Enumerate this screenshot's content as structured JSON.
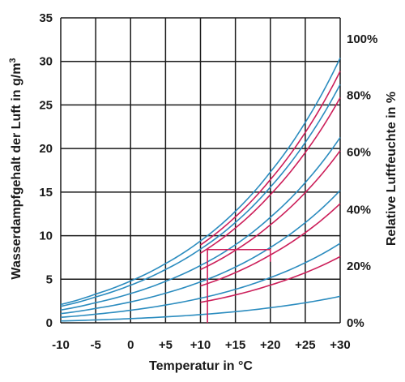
{
  "chart_data": {
    "type": "line",
    "xlabel": "Temperatur in °C",
    "ylabel": "Wasserdampfgehalt der Luft in g/m",
    "ylabel_sup": "3",
    "y2label": "Relative Luftfeuchte in %",
    "xlim": [
      -10,
      30
    ],
    "ylim": [
      0,
      35
    ],
    "grid": true,
    "x_ticks": [
      -10,
      -5,
      0,
      5,
      10,
      15,
      20,
      25,
      30
    ],
    "x_tick_labels": [
      "-10",
      "-5",
      "0",
      "+5",
      "+10",
      "+15",
      "+20",
      "+25",
      "+30"
    ],
    "y_ticks": [
      0,
      5,
      10,
      15,
      20,
      25,
      30,
      35
    ],
    "y_tick_labels": [
      "0",
      "5",
      "10",
      "15",
      "20",
      "25",
      "30",
      "35"
    ],
    "y2_ticks": [
      {
        "label": "100%",
        "y": 32.6
      },
      {
        "label": "80%",
        "y": 26.1
      },
      {
        "label": "60%",
        "y": 19.6
      },
      {
        "label": "40%",
        "y": 13.0
      },
      {
        "label": "20%",
        "y": 6.5
      },
      {
        "label": "0%",
        "y": 0
      }
    ],
    "saturation_curve": {
      "x": [
        -10,
        -5,
        0,
        5,
        10,
        15,
        20,
        25,
        30
      ],
      "y": [
        2.1,
        3.3,
        4.8,
        6.8,
        9.4,
        12.8,
        17.3,
        23.0,
        30.4
      ]
    },
    "series_blue": {
      "color": "#2b8cbf",
      "x_range": [
        -10,
        30
      ],
      "rh_fractions": [
        1.0,
        0.9,
        0.7,
        0.5,
        0.3,
        0.1
      ]
    },
    "series_red": {
      "color": "#cc1f5a",
      "x_range": [
        10,
        30
      ],
      "rh_fractions": [
        0.95,
        0.85,
        0.65,
        0.45,
        0.25
      ]
    },
    "annotation": {
      "color": "#cc1f5a",
      "polyline": [
        [
          11,
          0
        ],
        [
          11,
          8.4
        ],
        [
          20,
          8.4
        ],
        [
          20,
          7
        ]
      ]
    }
  }
}
